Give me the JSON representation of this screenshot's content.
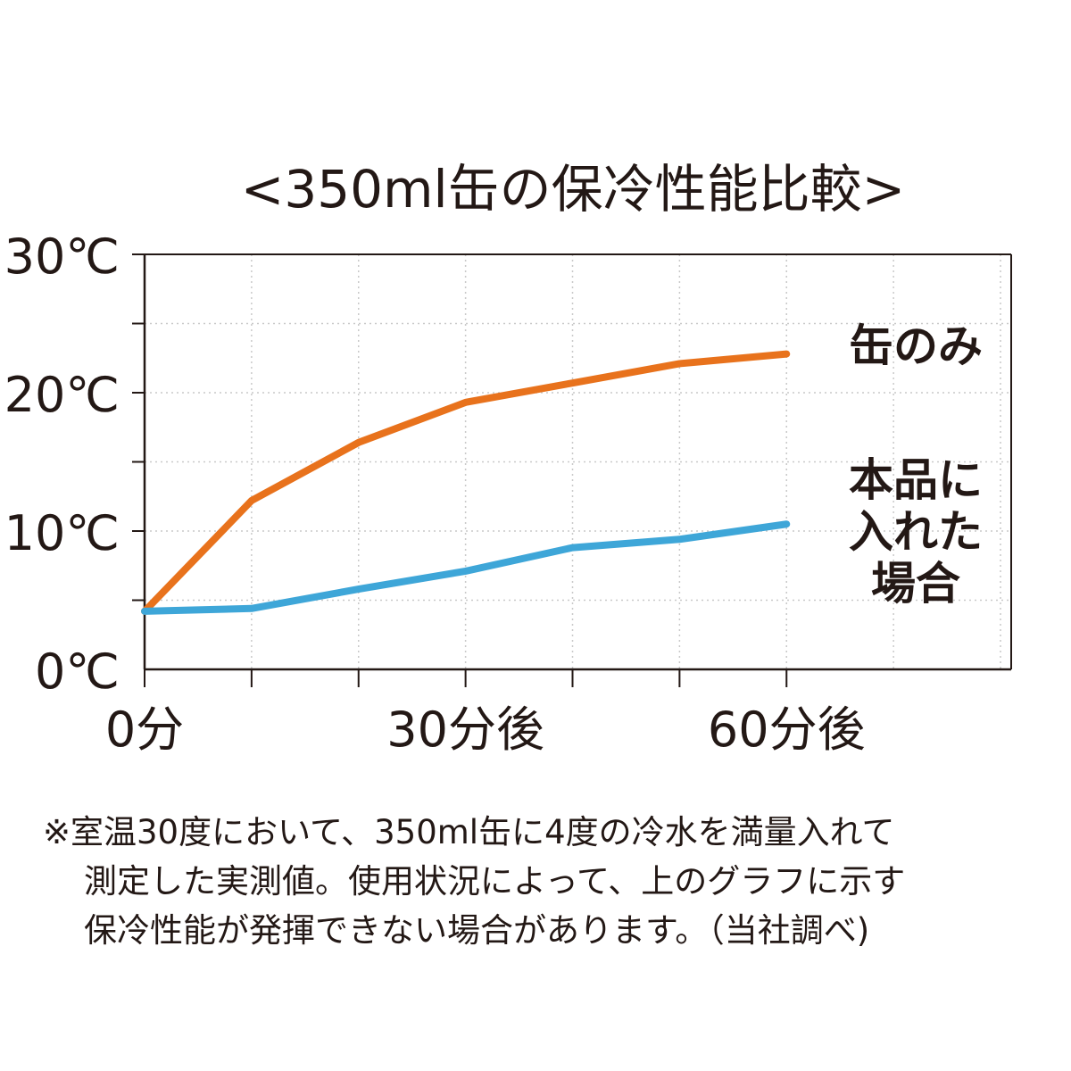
{
  "chart_data": {
    "type": "line",
    "title": "<350ml缶の保冷性能比較>",
    "x": [
      0,
      10,
      20,
      30,
      40,
      50,
      60
    ],
    "x_unit": "分",
    "xlim": [
      0,
      81
    ],
    "x_ticks": [
      {
        "value": 0,
        "label": "0分"
      },
      {
        "value": 30,
        "label": "30分後"
      },
      {
        "value": 60,
        "label": "60分後"
      }
    ],
    "ylim": [
      0,
      30
    ],
    "y_ticks": [
      {
        "value": 0,
        "label": "0℃"
      },
      {
        "value": 10,
        "label": "10℃"
      },
      {
        "value": 20,
        "label": "20℃"
      },
      {
        "value": 30,
        "label": "30℃"
      }
    ],
    "grid": true,
    "legend_position": "right",
    "series": [
      {
        "name": "缶のみ",
        "color": "#e8721c",
        "values": [
          4.2,
          12.2,
          16.4,
          19.3,
          20.7,
          22.1,
          22.8
        ]
      },
      {
        "name": "本品に入れた場合",
        "color": "#3ea6d8",
        "values": [
          4.2,
          4.4,
          5.8,
          7.1,
          8.8,
          9.4,
          10.5
        ]
      }
    ]
  },
  "series_labels": [
    {
      "lines": [
        "缶のみ"
      ]
    },
    {
      "lines": [
        "本品に",
        "入れた",
        "場合"
      ]
    }
  ],
  "footnote": [
    "※室温30度において、350ml缶に4度の冷水を満量入れて",
    "測定した実測値。使用状況によって、上のグラフに示す",
    "保冷性能が発揮できない場合があります。（当社調べ)"
  ]
}
